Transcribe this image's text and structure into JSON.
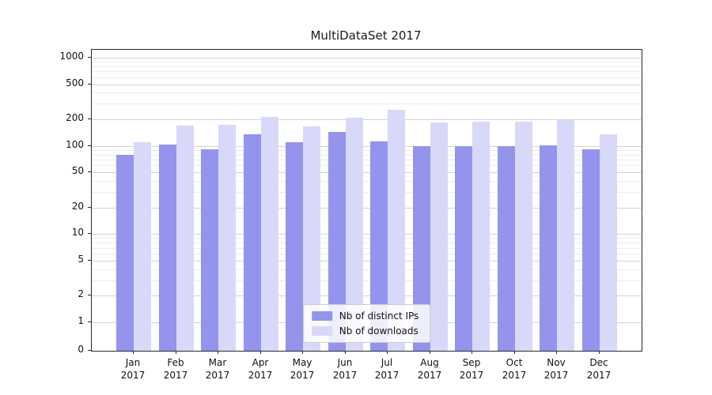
{
  "chart_data": {
    "type": "bar",
    "title": "MultiDataSet 2017",
    "categories": [
      "Jan",
      "Feb",
      "Mar",
      "Apr",
      "May",
      "Jun",
      "Jul",
      "Aug",
      "Sep",
      "Oct",
      "Nov",
      "Dec"
    ],
    "year_label": "2017",
    "series": [
      {
        "name": "Nb of distinct IPs",
        "color": "#9494ec",
        "values": [
          80,
          103,
          92,
          135,
          110,
          145,
          112,
          100,
          100,
          100,
          101,
          92
        ]
      },
      {
        "name": "Nb of downloads",
        "color": "#d8d8f8",
        "values": [
          110,
          170,
          175,
          215,
          165,
          210,
          255,
          185,
          188,
          188,
          197,
          135
        ]
      }
    ],
    "yticks": [
      0,
      1,
      2,
      5,
      10,
      20,
      50,
      100,
      200,
      500,
      1000
    ],
    "yscale": "symlog",
    "ylim": [
      0,
      1259
    ],
    "xlabel": "",
    "ylabel": "",
    "grid": true,
    "legend_position": "lower center"
  }
}
